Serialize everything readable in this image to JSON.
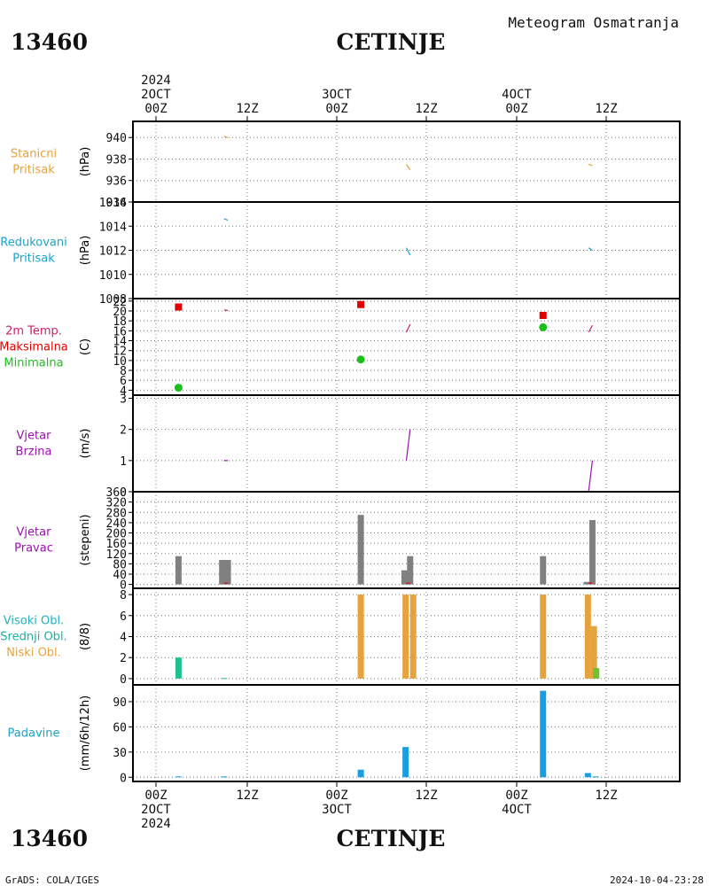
{
  "header": {
    "station_id_top": "13460",
    "station_name_top": "CETINJE",
    "subtitle": "Meteogram Osmatranja",
    "station_id_bottom": "13460",
    "station_name_bottom": "CETINJE"
  },
  "footer": {
    "left": "GrADS: COLA/IGES",
    "right": "2024-10-04-23:28"
  },
  "time_axis": {
    "top": [
      [
        "2024",
        "2OCT",
        "00Z"
      ],
      [
        "12Z"
      ],
      [
        "3OCT",
        "00Z"
      ],
      [
        "12Z"
      ],
      [
        "4OCT",
        "00Z"
      ],
      [
        "12Z"
      ]
    ],
    "bottom": [
      [
        "00Z",
        "2OCT",
        "2024"
      ],
      [
        "12Z"
      ],
      [
        "00Z",
        "3OCT"
      ],
      [
        "12Z"
      ],
      [
        "00Z",
        "4OCT"
      ],
      [
        "12Z"
      ]
    ]
  },
  "chart_data": [
    {
      "type": "line",
      "panel_labels": [
        "Stanicni",
        "Pritisak"
      ],
      "label_color": "#e6a23c",
      "ylabel": "(hPa)",
      "ylim": [
        934,
        941.5
      ],
      "yticks": [
        934,
        936,
        938,
        940
      ],
      "series": [
        {
          "color": "#e6a23c",
          "points": [
            [
              12,
              940.1
            ],
            [
              12.5,
              940.0
            ]
          ]
        },
        {
          "color": "#e6a23c",
          "points": [
            [
              36,
              937.5
            ],
            [
              36.5,
              937.0
            ]
          ]
        },
        {
          "color": "#e6a23c",
          "points": [
            [
              60,
              937.5
            ],
            [
              60.5,
              937.4
            ]
          ]
        }
      ]
    },
    {
      "type": "line",
      "panel_labels": [
        "Redukovani",
        "Pritisak"
      ],
      "label_color": "#1aa3c8",
      "ylabel": "(hPa)",
      "ylim": [
        1008,
        1016
      ],
      "yticks": [
        1008,
        1010,
        1012,
        1014,
        1016
      ],
      "series": [
        {
          "color": "#1aa3c8",
          "points": [
            [
              12,
              1014.6
            ],
            [
              12.5,
              1014.5
            ]
          ]
        },
        {
          "color": "#1aa3c8",
          "points": [
            [
              36,
              1012.2
            ],
            [
              36.5,
              1011.6
            ]
          ]
        },
        {
          "color": "#1aa3c8",
          "points": [
            [
              60,
              1012.2
            ],
            [
              60.5,
              1012.0
            ]
          ]
        }
      ]
    },
    {
      "type": "line",
      "panel_labels": [
        "2m Temp.",
        "Maksimalna",
        "Minimalna"
      ],
      "label_colors": [
        "#cc1e6e",
        "#e00000",
        "#18c018"
      ],
      "ylabel": "(C)",
      "ylim": [
        3,
        22.5
      ],
      "yticks": [
        4,
        6,
        8,
        10,
        12,
        14,
        16,
        18,
        20,
        22
      ],
      "series": [
        {
          "color": "#cc1e6e",
          "points": [
            [
              12,
              20.2
            ],
            [
              12.5,
              20.1
            ]
          ]
        },
        {
          "color": "#cc1e6e",
          "points": [
            [
              36,
              15.7
            ],
            [
              36.5,
              17.3
            ]
          ]
        },
        {
          "color": "#cc1e6e",
          "points": [
            [
              60,
              15.7
            ],
            [
              60.5,
              17.1
            ]
          ]
        }
      ],
      "maxima": {
        "color": "#e00000",
        "points": [
          [
            6,
            20.8
          ],
          [
            30,
            21.3
          ],
          [
            54,
            19.1
          ]
        ]
      },
      "minima": {
        "color": "#18c018",
        "points": [
          [
            6,
            4.5
          ],
          [
            30,
            10.2
          ],
          [
            54,
            16.7
          ]
        ]
      }
    },
    {
      "type": "line",
      "panel_labels": [
        "Vjetar",
        "Brzina"
      ],
      "label_color": "#9a10b0",
      "ylabel": "(m/s)",
      "ylim": [
        0,
        3.1
      ],
      "yticks": [
        0,
        1,
        2,
        3
      ],
      "series": [
        {
          "color": "#9a10b0",
          "points": [
            [
              12,
              1.0
            ],
            [
              12.5,
              1.0
            ]
          ]
        },
        {
          "color": "#9a10b0",
          "points": [
            [
              36,
              1.0
            ],
            [
              36.5,
              2.0
            ]
          ]
        },
        {
          "color": "#9a10b0",
          "points": [
            [
              60,
              0.0
            ],
            [
              60.5,
              1.0
            ]
          ]
        }
      ]
    },
    {
      "type": "bar",
      "panel_labels": [
        "Vjetar",
        "Pravac"
      ],
      "label_color": "#9a10b0",
      "ylabel": "(stepeni)",
      "ylim": [
        -15,
        360
      ],
      "yticks": [
        0,
        40,
        80,
        120,
        160,
        200,
        240,
        280,
        320,
        360
      ],
      "bars": [
        {
          "x": 6,
          "value": 110,
          "color": "#808080"
        },
        {
          "x": 11.75,
          "value": 95,
          "color": "#808080"
        },
        {
          "x": 12.5,
          "value": 95,
          "color": "#808080"
        },
        {
          "x": 30,
          "value": 270,
          "color": "#808080"
        },
        {
          "x": 35.75,
          "value": 55,
          "color": "#808080"
        },
        {
          "x": 36.5,
          "value": 110,
          "color": "#808080"
        },
        {
          "x": 54,
          "value": 110,
          "color": "#808080"
        },
        {
          "x": 59.75,
          "value": 10,
          "color": "#808080"
        },
        {
          "x": 60.5,
          "value": 250,
          "color": "#808080"
        }
      ],
      "series": [
        {
          "color": "#e00000",
          "points": [
            [
              12,
              5
            ],
            [
              12.5,
              5
            ]
          ]
        },
        {
          "color": "#e00000",
          "points": [
            [
              36,
              5
            ],
            [
              36.5,
              5
            ]
          ]
        },
        {
          "color": "#e00000",
          "points": [
            [
              60,
              5
            ],
            [
              60.5,
              5
            ]
          ]
        }
      ]
    },
    {
      "type": "bar",
      "panel_labels": [
        "Visoki Obl.",
        "Srednji Obl.",
        "Niski Obl."
      ],
      "label_colors": [
        "#20b0c0",
        "#20b0a0",
        "#e6a23c"
      ],
      "ylabel": "(8/8)",
      "ylim": [
        -0.6,
        8.6
      ],
      "yticks": [
        0,
        2,
        4,
        6,
        8
      ],
      "bars": [
        {
          "x": 6,
          "value": 2,
          "color": "#20c090"
        },
        {
          "x": 12,
          "value": 0.05,
          "color": "#20c090"
        },
        {
          "x": 30,
          "value": 8,
          "color": "#e6a23c"
        },
        {
          "x": 35.9,
          "value": 8,
          "color": "#e6a23c"
        },
        {
          "x": 36.9,
          "value": 8,
          "color": "#e6a23c"
        },
        {
          "x": 54,
          "value": 8,
          "color": "#e6a23c"
        },
        {
          "x": 59.9,
          "value": 8,
          "color": "#e6a23c"
        },
        {
          "x": 60.7,
          "value": 5,
          "color": "#e6a23c"
        },
        {
          "x": 61.0,
          "value": 1,
          "color": "#70c030"
        }
      ]
    },
    {
      "type": "bar",
      "panel_labels": [
        "Padavine"
      ],
      "label_color": "#1aa3c8",
      "ylabel": "(mm/6h/12h)",
      "ylim": [
        -5,
        110
      ],
      "yticks": [
        0,
        30,
        60,
        90
      ],
      "bars": [
        {
          "x": 6,
          "value": 1,
          "color": "#1a9ee0"
        },
        {
          "x": 12,
          "value": 1,
          "color": "#1a9ee0"
        },
        {
          "x": 30,
          "value": 9,
          "color": "#1a9ee0"
        },
        {
          "x": 35.9,
          "value": 36,
          "color": "#1a9ee0"
        },
        {
          "x": 54,
          "value": 103,
          "color": "#1a9ee0"
        },
        {
          "x": 59.9,
          "value": 5,
          "color": "#1a9ee0"
        },
        {
          "x": 60.9,
          "value": 1,
          "color": "#1a9ee0"
        }
      ]
    }
  ]
}
